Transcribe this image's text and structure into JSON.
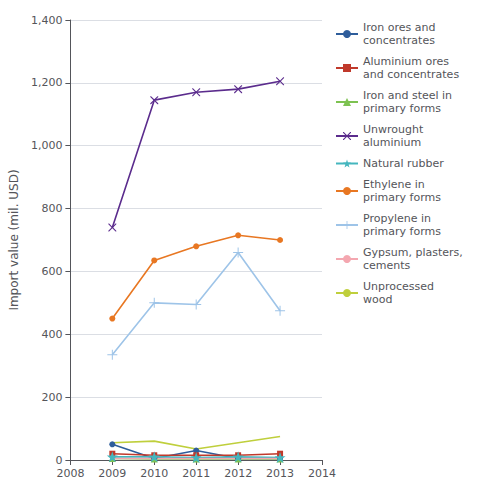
{
  "chart_data": {
    "type": "line",
    "x": [
      2009,
      2010,
      2011,
      2012,
      2013
    ],
    "xlim": [
      2008,
      2014
    ],
    "xticks": [
      2008,
      2009,
      2010,
      2011,
      2012,
      2013,
      2014
    ],
    "ylim": [
      0,
      1400
    ],
    "yticks": [
      0,
      200,
      400,
      600,
      800,
      {
        "value": 1000,
        "label": "1,000"
      },
      {
        "value": 1200,
        "label": "1,200"
      },
      {
        "value": 1400,
        "label": "1,400"
      }
    ],
    "ylabel": "Import value (mil. USD)",
    "grid": "y",
    "legend": "right",
    "series": [
      {
        "name": "Iron ores and\nconcentrates",
        "color": "#2E5D9B",
        "marker": "circle",
        "values": [
          50,
          5,
          30,
          5,
          5
        ]
      },
      {
        "name": "Aluminium ores\nand concentrates",
        "color": "#C0392B",
        "marker": "square",
        "values": [
          20,
          15,
          15,
          15,
          20
        ]
      },
      {
        "name": "Iron and steel in\nprimary forms",
        "color": "#7DC251",
        "marker": "triangle",
        "values": [
          5,
          3,
          3,
          3,
          3
        ]
      },
      {
        "name": "Unwrought\naluminium",
        "color": "#5B2C8D",
        "marker": "x",
        "values": [
          740,
          1145,
          1170,
          1180,
          1205
        ]
      },
      {
        "name": "Natural rubber",
        "color": "#45B6BE",
        "marker": "star",
        "values": [
          10,
          10,
          8,
          10,
          8
        ]
      },
      {
        "name": "Ethylene in\nprimary forms",
        "color": "#E87722",
        "marker": "circle",
        "values": [
          450,
          635,
          680,
          715,
          700
        ]
      },
      {
        "name": "Propylene in\nprimary forms",
        "color": "#9EC4E8",
        "marker": "plus",
        "values": [
          335,
          500,
          495,
          660,
          475
        ]
      },
      {
        "name": "Gypsum, plasters,\ncements",
        "color": "#F4A7B0",
        "marker": "none",
        "values": [
          5,
          5,
          5,
          5,
          5
        ]
      },
      {
        "name": "Unprocessed\nwood",
        "color": "#BFCF3C",
        "marker": "none",
        "values": [
          55,
          60,
          35,
          55,
          75
        ]
      }
    ]
  }
}
